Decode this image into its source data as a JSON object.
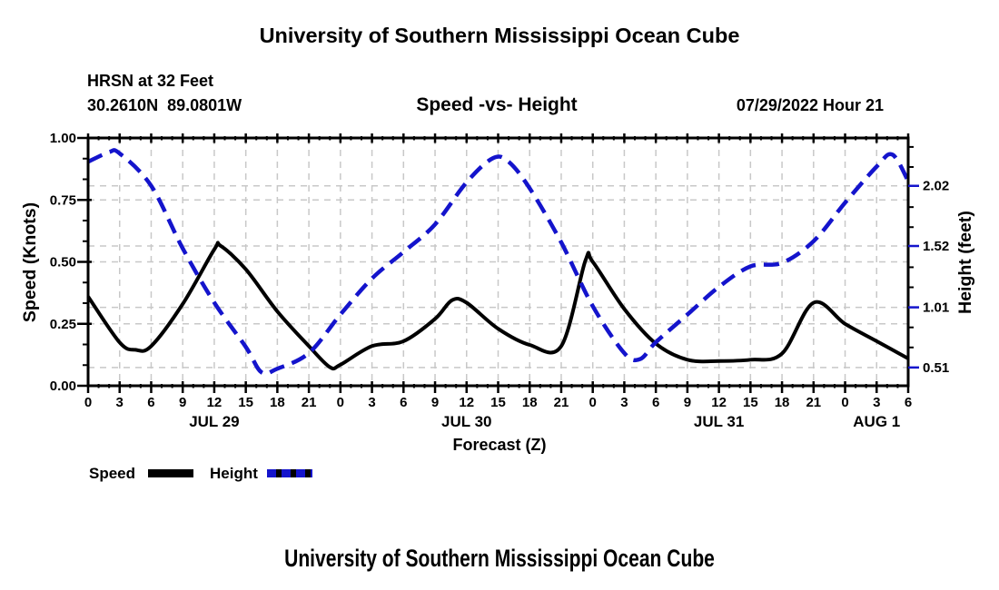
{
  "page": {
    "top_title": "University of Southern Mississippi Ocean Cube",
    "bottom_title": "University of Southern Mississippi Ocean Cube"
  },
  "header": {
    "station": "HRSN at 32 Feet",
    "coordinates": "30.2610N  89.0801W",
    "chart_title": "Speed -vs- Height",
    "run_datetime": "07/29/2022 Hour 21"
  },
  "legend": {
    "speed_label": "Speed",
    "height_label": "Height"
  },
  "colors": {
    "speed": "#000000",
    "height": "#1414cc",
    "grid": "#c8c8c8",
    "axis": "#000000",
    "right_tick": "#1414cc"
  },
  "chart_data": {
    "type": "line",
    "title": "Speed -vs- Height",
    "xlabel": "Forecast (Z)",
    "ylabel_left": "Speed (Knots)",
    "ylabel_right": "Height (feet)",
    "x_range_hours": [
      0,
      78
    ],
    "x_major_tick_step_hours": 3,
    "x_minor_tick_step_hours": 1,
    "x_tick_label_mod": 24,
    "grid": true,
    "legend_position": "bottom-left",
    "day_labels": [
      {
        "label": "JUL 29",
        "hour": 12
      },
      {
        "label": "JUL 30",
        "hour": 36
      },
      {
        "label": "JUL 31",
        "hour": 60
      },
      {
        "label": "AUG 1",
        "hour": 75
      }
    ],
    "left_axis": {
      "range": [
        0,
        1
      ],
      "ticks": [
        0,
        0.25,
        0.5,
        0.75,
        1
      ],
      "tick_labels": [
        "0.00",
        "0.25",
        "0.50",
        "0.75",
        "1.00"
      ],
      "grid_values": [
        0.25,
        0.5,
        0.75
      ]
    },
    "right_axis": {
      "range": [
        0.358,
        2.418
      ],
      "ticks": [
        0.51,
        1.01,
        1.52,
        2.02
      ],
      "tick_labels": [
        "0.51",
        "1.01",
        "1.52",
        "2.02"
      ]
    },
    "series": [
      {
        "name": "Speed",
        "axis": "left",
        "units": "knots",
        "color": "#000000",
        "style": "solid",
        "hours": [
          0,
          3,
          4.5,
          6,
          9,
          12,
          12.6,
          15,
          18,
          21,
          23,
          24,
          27,
          30,
          33,
          34.6,
          36,
          39,
          42,
          45,
          47.3,
          48,
          51,
          54,
          57,
          60,
          63,
          66,
          69,
          72,
          75,
          78
        ],
        "values": [
          0.36,
          0.175,
          0.145,
          0.16,
          0.33,
          0.55,
          0.565,
          0.47,
          0.3,
          0.16,
          0.075,
          0.085,
          0.16,
          0.18,
          0.27,
          0.345,
          0.335,
          0.23,
          0.165,
          0.16,
          0.505,
          0.5,
          0.31,
          0.17,
          0.105,
          0.1,
          0.105,
          0.13,
          0.335,
          0.25,
          0.18,
          0.11
        ]
      },
      {
        "name": "Height",
        "axis": "right",
        "units": "feet",
        "color": "#1414cc",
        "style": "dashed",
        "hours": [
          0,
          2,
          3,
          6,
          9,
          12,
          15,
          16.5,
          18,
          21,
          24,
          27,
          30,
          33,
          36,
          38.5,
          40,
          42,
          45,
          48,
          51,
          52.5,
          54,
          57,
          60,
          63,
          66,
          69,
          72,
          75,
          76.5,
          78
        ],
        "values": [
          2.22,
          2.3,
          2.29,
          2.02,
          1.5,
          1.05,
          0.68,
          0.47,
          0.5,
          0.63,
          0.95,
          1.25,
          1.47,
          1.7,
          2.05,
          2.25,
          2.22,
          2.0,
          1.55,
          1.02,
          0.63,
          0.58,
          0.72,
          0.95,
          1.18,
          1.35,
          1.38,
          1.56,
          1.88,
          2.18,
          2.28,
          2.06
        ]
      }
    ]
  }
}
